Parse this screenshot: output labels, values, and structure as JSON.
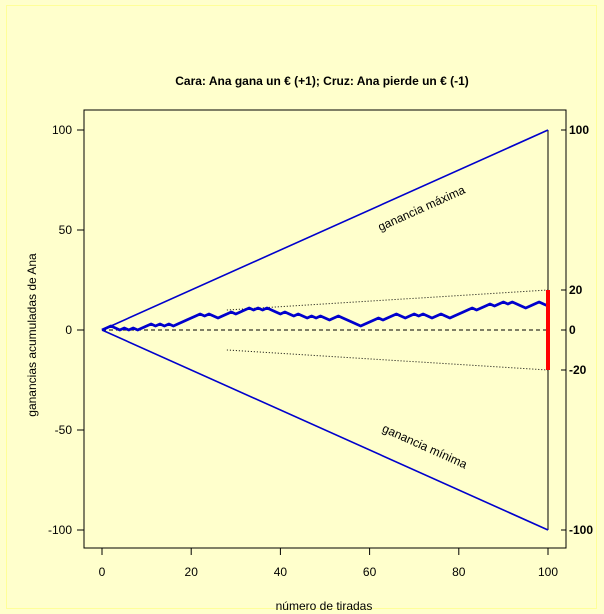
{
  "chart_data": {
    "type": "line",
    "title": "Cara: Ana gana un € (+1); Cruz: Ana pierde un € (-1)",
    "xlabel": "número de tiradas",
    "ylabel": "ganancias acumuladas de Ana",
    "xlim": [
      0,
      100
    ],
    "ylim": [
      -100,
      100
    ],
    "x_ticks": [
      0,
      20,
      40,
      60,
      80,
      100
    ],
    "y_ticks": [
      -100,
      -50,
      0,
      50,
      100
    ],
    "right_ticks": [
      100,
      20,
      0,
      -20,
      -100
    ],
    "grid": false,
    "annotations": [
      {
        "text": "ganancia máxima",
        "x": 72,
        "y": 59
      },
      {
        "text": "ganancia mínima",
        "x": 72,
        "y": -60
      }
    ],
    "colors": {
      "walk": "#0000cc",
      "bounds": "#0000cc",
      "range_bar": "#ff0000",
      "dotted": "#000000",
      "zero_line": "#000000"
    },
    "series": [
      {
        "x": [
          0,
          1,
          2,
          3,
          4,
          5,
          6,
          7,
          8,
          9,
          10,
          11,
          12,
          13,
          14,
          15,
          16,
          17,
          18,
          19,
          20,
          21,
          22,
          23,
          24,
          25,
          26,
          27,
          28,
          29,
          30,
          31,
          32,
          33,
          34,
          35,
          36,
          37,
          38,
          39,
          40,
          41,
          42,
          43,
          44,
          45,
          46,
          47,
          48,
          49,
          50,
          51,
          52,
          53,
          54,
          55,
          56,
          57,
          58,
          59,
          60,
          61,
          62,
          63,
          64,
          65,
          66,
          67,
          68,
          69,
          70,
          71,
          72,
          73,
          74,
          75,
          76,
          77,
          78,
          79,
          80,
          81,
          82,
          83,
          84,
          85,
          86,
          87,
          88,
          89,
          90,
          91,
          92,
          93,
          94,
          95,
          96,
          97,
          98,
          99,
          100
        ],
        "values": [
          0,
          1,
          2,
          1,
          0,
          1,
          0,
          1,
          0,
          1,
          2,
          3,
          2,
          3,
          2,
          3,
          2,
          3,
          4,
          5,
          6,
          7,
          8,
          7,
          8,
          7,
          6,
          7,
          8,
          9,
          8,
          9,
          10,
          11,
          10,
          11,
          10,
          11,
          10,
          9,
          8,
          9,
          8,
          7,
          8,
          7,
          6,
          7,
          6,
          7,
          6,
          5,
          6,
          7,
          6,
          5,
          4,
          3,
          2,
          3,
          4,
          5,
          6,
          5,
          6,
          7,
          8,
          7,
          6,
          7,
          8,
          7,
          8,
          7,
          6,
          7,
          8,
          7,
          6,
          7,
          8,
          9,
          10,
          11,
          10,
          11,
          12,
          13,
          12,
          13,
          14,
          13,
          14,
          13,
          12,
          11,
          12,
          13,
          14,
          13,
          12
        ]
      }
    ],
    "bounds": {
      "max": [
        [
          0,
          0
        ],
        [
          100,
          100
        ]
      ],
      "min": [
        [
          0,
          0
        ],
        [
          100,
          -100
        ]
      ]
    },
    "dotted_bounds": {
      "upper": [
        [
          28,
          10
        ],
        [
          100,
          20
        ]
      ],
      "lower": [
        [
          28,
          -10
        ],
        [
          100,
          -20
        ]
      ]
    },
    "range_bar": {
      "x": 100,
      "y_from": -20,
      "y_to": 20
    }
  }
}
